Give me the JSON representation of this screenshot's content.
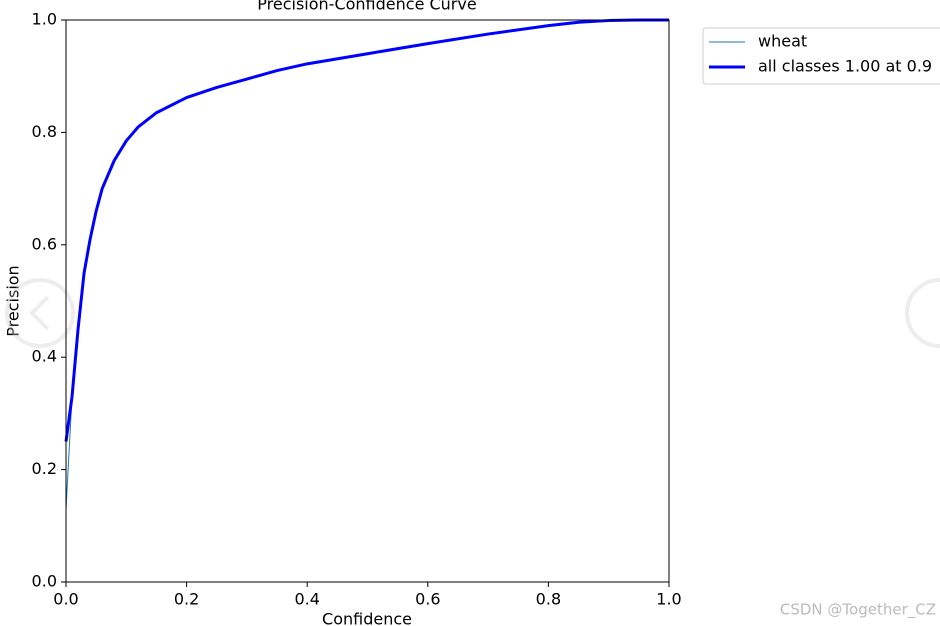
{
  "chart_data": {
    "type": "line",
    "title": "Precision-Confidence Curve",
    "xlabel": "Confidence",
    "ylabel": "Precision",
    "x": [
      0,
      0.01,
      0.02,
      0.03,
      0.04,
      0.05,
      0.06,
      0.08,
      0.1,
      0.12,
      0.15,
      0.2,
      0.25,
      0.3,
      0.35,
      0.4,
      0.5,
      0.6,
      0.7,
      0.8,
      0.85,
      0.9,
      0.95,
      1.0
    ],
    "series": [
      {
        "name": "wheat",
        "color": "#1f77b4",
        "linewidth": 1,
        "values": [
          0.13,
          0.33,
          0.45,
          0.55,
          0.61,
          0.66,
          0.7,
          0.75,
          0.785,
          0.81,
          0.835,
          0.862,
          0.88,
          0.895,
          0.91,
          0.922,
          0.94,
          0.958,
          0.975,
          0.99,
          0.996,
          0.999,
          1.0,
          1.0
        ]
      },
      {
        "name": "all classes 1.00 at 0.9",
        "color": "#0000ff",
        "linewidth": 3,
        "values": [
          0.25,
          0.33,
          0.45,
          0.55,
          0.61,
          0.66,
          0.7,
          0.75,
          0.785,
          0.81,
          0.835,
          0.862,
          0.88,
          0.895,
          0.91,
          0.922,
          0.94,
          0.958,
          0.975,
          0.99,
          0.996,
          0.999,
          1.0,
          1.0
        ]
      }
    ],
    "xlim": [
      0,
      1
    ],
    "ylim": [
      0,
      1
    ],
    "xticks": [
      {
        "value": 0,
        "label": "0.0"
      },
      0.2,
      0.4,
      0.6,
      0.8,
      {
        "value": 1,
        "label": "1.0"
      }
    ],
    "yticks": [
      {
        "value": 0,
        "label": "0.0"
      },
      0.2,
      0.4,
      0.6,
      0.8,
      {
        "value": 1,
        "label": "1.0"
      }
    ],
    "legend": "outside-upper-right"
  },
  "watermark": "CSDN @Together_CZ"
}
